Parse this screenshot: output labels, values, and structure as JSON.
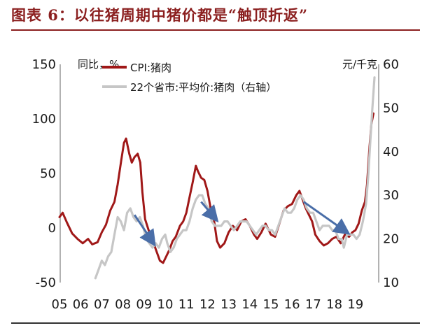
{
  "title": "图表 6：以往猪周期中猪价都是“触顶折返”",
  "chart_data": {
    "type": "line",
    "left_axis": {
      "label": "同比，%",
      "ticks": [
        150,
        100,
        50,
        0,
        -50
      ],
      "range": [
        -50,
        150
      ]
    },
    "right_axis": {
      "label": "元/千克",
      "ticks": [
        60,
        50,
        40,
        30,
        20,
        10
      ],
      "range": [
        10,
        60
      ]
    },
    "x_ticks": [
      "05",
      "06",
      "07",
      "08",
      "09",
      "10",
      "11",
      "12",
      "13",
      "14",
      "15",
      "16",
      "17",
      "18",
      "19"
    ],
    "x_range": [
      2005,
      2019.9
    ],
    "legend": [
      "CPI:猪肉",
      "22个省市:平均价:猪肉（右轴）"
    ],
    "series": [
      {
        "name": "CPI:猪肉",
        "axis": "left",
        "color": "#a01818",
        "points": [
          [
            2005.0,
            10
          ],
          [
            2005.15,
            14
          ],
          [
            2005.35,
            5
          ],
          [
            2005.6,
            -5
          ],
          [
            2005.85,
            -10
          ],
          [
            2006.1,
            -14
          ],
          [
            2006.35,
            -10
          ],
          [
            2006.55,
            -15
          ],
          [
            2006.8,
            -13
          ],
          [
            2007.0,
            -4
          ],
          [
            2007.2,
            3
          ],
          [
            2007.4,
            16
          ],
          [
            2007.6,
            24
          ],
          [
            2007.75,
            40
          ],
          [
            2007.92,
            62
          ],
          [
            2008.05,
            78
          ],
          [
            2008.15,
            82
          ],
          [
            2008.3,
            68
          ],
          [
            2008.42,
            60
          ],
          [
            2008.55,
            65
          ],
          [
            2008.7,
            68
          ],
          [
            2008.82,
            60
          ],
          [
            2008.92,
            33
          ],
          [
            2009.05,
            8
          ],
          [
            2009.25,
            -4
          ],
          [
            2009.45,
            -14
          ],
          [
            2009.6,
            -22
          ],
          [
            2009.75,
            -30
          ],
          [
            2009.9,
            -32
          ],
          [
            2010.05,
            -26
          ],
          [
            2010.2,
            -20
          ],
          [
            2010.35,
            -12
          ],
          [
            2010.5,
            -8
          ],
          [
            2010.7,
            2
          ],
          [
            2010.85,
            6
          ],
          [
            2011.0,
            14
          ],
          [
            2011.15,
            28
          ],
          [
            2011.3,
            42
          ],
          [
            2011.45,
            57
          ],
          [
            2011.55,
            52
          ],
          [
            2011.7,
            46
          ],
          [
            2011.85,
            44
          ],
          [
            2012.0,
            34
          ],
          [
            2012.15,
            18
          ],
          [
            2012.3,
            8
          ],
          [
            2012.45,
            -12
          ],
          [
            2012.6,
            -18
          ],
          [
            2012.8,
            -14
          ],
          [
            2013.0,
            -4
          ],
          [
            2013.2,
            2
          ],
          [
            2013.4,
            -2
          ],
          [
            2013.6,
            6
          ],
          [
            2013.8,
            8
          ],
          [
            2014.0,
            2
          ],
          [
            2014.2,
            -6
          ],
          [
            2014.35,
            -10
          ],
          [
            2014.55,
            -4
          ],
          [
            2014.75,
            4
          ],
          [
            2015.0,
            -6
          ],
          [
            2015.2,
            -8
          ],
          [
            2015.4,
            4
          ],
          [
            2015.6,
            16
          ],
          [
            2015.8,
            20
          ],
          [
            2016.0,
            22
          ],
          [
            2016.2,
            30
          ],
          [
            2016.35,
            34
          ],
          [
            2016.5,
            26
          ],
          [
            2016.65,
            18
          ],
          [
            2016.8,
            12
          ],
          [
            2016.95,
            6
          ],
          [
            2017.1,
            -6
          ],
          [
            2017.3,
            -12
          ],
          [
            2017.5,
            -16
          ],
          [
            2017.7,
            -14
          ],
          [
            2017.9,
            -10
          ],
          [
            2018.1,
            -8
          ],
          [
            2018.3,
            -14
          ],
          [
            2018.5,
            -6
          ],
          [
            2018.7,
            -8
          ],
          [
            2018.85,
            -4
          ],
          [
            2019.0,
            -2
          ],
          [
            2019.15,
            4
          ],
          [
            2019.3,
            16
          ],
          [
            2019.45,
            24
          ],
          [
            2019.55,
            40
          ],
          [
            2019.65,
            70
          ],
          [
            2019.75,
            95
          ],
          [
            2019.85,
            105
          ]
        ]
      },
      {
        "name": "22个省市:平均价:猪肉（右轴）",
        "axis": "right",
        "color": "#c6c6c6",
        "points": [
          [
            2006.7,
            11
          ],
          [
            2006.85,
            13
          ],
          [
            2007.0,
            15
          ],
          [
            2007.15,
            14
          ],
          [
            2007.3,
            16
          ],
          [
            2007.45,
            17
          ],
          [
            2007.6,
            21
          ],
          [
            2007.75,
            25
          ],
          [
            2007.9,
            24
          ],
          [
            2008.05,
            22
          ],
          [
            2008.2,
            26
          ],
          [
            2008.35,
            27
          ],
          [
            2008.5,
            25
          ],
          [
            2008.65,
            24
          ],
          [
            2008.8,
            25
          ],
          [
            2008.95,
            23
          ],
          [
            2009.1,
            20
          ],
          [
            2009.25,
            19
          ],
          [
            2009.4,
            18
          ],
          [
            2009.55,
            19
          ],
          [
            2009.7,
            18
          ],
          [
            2009.85,
            20
          ],
          [
            2010.0,
            21
          ],
          [
            2010.1,
            19
          ],
          [
            2010.25,
            17
          ],
          [
            2010.4,
            18
          ],
          [
            2010.55,
            20
          ],
          [
            2010.7,
            21
          ],
          [
            2010.85,
            22
          ],
          [
            2011.0,
            22
          ],
          [
            2011.15,
            24
          ],
          [
            2011.3,
            27
          ],
          [
            2011.45,
            29
          ],
          [
            2011.6,
            30
          ],
          [
            2011.75,
            30
          ],
          [
            2011.9,
            28
          ],
          [
            2012.05,
            27
          ],
          [
            2012.2,
            24
          ],
          [
            2012.35,
            23
          ],
          [
            2012.5,
            23
          ],
          [
            2012.65,
            23
          ],
          [
            2012.8,
            24
          ],
          [
            2012.95,
            24
          ],
          [
            2013.1,
            23
          ],
          [
            2013.25,
            22
          ],
          [
            2013.4,
            23
          ],
          [
            2013.55,
            24
          ],
          [
            2013.7,
            24
          ],
          [
            2013.85,
            24
          ],
          [
            2014.0,
            23
          ],
          [
            2014.15,
            22
          ],
          [
            2014.3,
            21
          ],
          [
            2014.45,
            22
          ],
          [
            2014.6,
            23
          ],
          [
            2014.75,
            23
          ],
          [
            2014.9,
            22
          ],
          [
            2015.05,
            22
          ],
          [
            2015.2,
            21
          ],
          [
            2015.35,
            23
          ],
          [
            2015.5,
            25
          ],
          [
            2015.65,
            27
          ],
          [
            2015.8,
            26
          ],
          [
            2015.95,
            26
          ],
          [
            2016.1,
            27
          ],
          [
            2016.25,
            29
          ],
          [
            2016.4,
            30
          ],
          [
            2016.55,
            29
          ],
          [
            2016.7,
            27
          ],
          [
            2016.85,
            26
          ],
          [
            2017.0,
            26
          ],
          [
            2017.15,
            24
          ],
          [
            2017.3,
            22
          ],
          [
            2017.45,
            23
          ],
          [
            2017.6,
            23
          ],
          [
            2017.75,
            23
          ],
          [
            2017.9,
            22
          ],
          [
            2018.05,
            22
          ],
          [
            2018.2,
            20
          ],
          [
            2018.35,
            20
          ],
          [
            2018.45,
            18
          ],
          [
            2018.6,
            21
          ],
          [
            2018.75,
            21
          ],
          [
            2018.9,
            21
          ],
          [
            2019.05,
            20
          ],
          [
            2019.2,
            21
          ],
          [
            2019.35,
            24
          ],
          [
            2019.5,
            28
          ],
          [
            2019.6,
            34
          ],
          [
            2019.7,
            42
          ],
          [
            2019.8,
            50
          ],
          [
            2019.9,
            57
          ]
        ]
      }
    ],
    "arrows": [
      {
        "from": [
          2008.55,
          25.5
        ],
        "to": [
          2009.45,
          19.0
        ],
        "axis": "right"
      },
      {
        "from": [
          2011.7,
          28.5
        ],
        "to": [
          2012.4,
          24.5
        ],
        "axis": "right"
      },
      {
        "from": [
          2016.55,
          28.5
        ],
        "to": [
          2018.6,
          21.5
        ],
        "axis": "right"
      }
    ],
    "arrow_color": "#4a6ea8"
  }
}
